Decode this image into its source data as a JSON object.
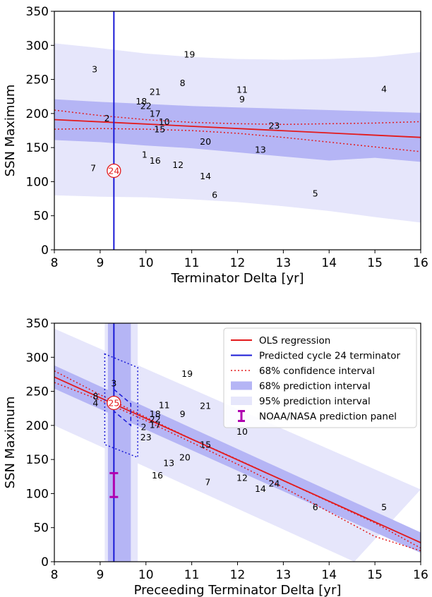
{
  "chart_data": [
    {
      "type": "scatter",
      "xlabel": "Terminator Delta [yr]",
      "ylabel": "SSN Maximum",
      "xlim": [
        8,
        16
      ],
      "ylim": [
        0,
        350
      ],
      "xticks": [
        "8",
        "9",
        "10",
        "11",
        "12",
        "13",
        "14",
        "15",
        "16"
      ],
      "yticks": [
        "0",
        "50",
        "100",
        "150",
        "200",
        "250",
        "300",
        "350"
      ],
      "points": [
        {
          "label": "1",
          "x": 9.97,
          "y": 140
        },
        {
          "label": "2",
          "x": 9.15,
          "y": 193
        },
        {
          "label": "3",
          "x": 8.88,
          "y": 265
        },
        {
          "label": "4",
          "x": 15.2,
          "y": 236
        },
        {
          "label": "5",
          "x": 13.7,
          "y": 83
        },
        {
          "label": "6",
          "x": 11.5,
          "y": 81
        },
        {
          "label": "7",
          "x": 8.85,
          "y": 120
        },
        {
          "label": "8",
          "x": 10.8,
          "y": 245
        },
        {
          "label": "9",
          "x": 12.1,
          "y": 221
        },
        {
          "label": "10",
          "x": 10.4,
          "y": 188
        },
        {
          "label": "11",
          "x": 12.1,
          "y": 235
        },
        {
          "label": "12",
          "x": 10.7,
          "y": 125
        },
        {
          "label": "13",
          "x": 12.5,
          "y": 147
        },
        {
          "label": "14",
          "x": 11.3,
          "y": 108
        },
        {
          "label": "15",
          "x": 10.3,
          "y": 177
        },
        {
          "label": "16",
          "x": 10.2,
          "y": 131
        },
        {
          "label": "17",
          "x": 10.2,
          "y": 200
        },
        {
          "label": "18",
          "x": 9.9,
          "y": 218
        },
        {
          "label": "19",
          "x": 10.95,
          "y": 287
        },
        {
          "label": "20",
          "x": 11.3,
          "y": 159
        },
        {
          "label": "21",
          "x": 10.2,
          "y": 232
        },
        {
          "label": "22",
          "x": 10.0,
          "y": 211
        },
        {
          "label": "23",
          "x": 12.8,
          "y": 182
        }
      ],
      "highlight": {
        "label": "24",
        "x": 9.3,
        "y": 116
      },
      "regression": {
        "x": [
          8,
          16
        ],
        "y": [
          191,
          165
        ]
      },
      "conf68_upper": {
        "x": [
          8,
          9,
          10,
          11,
          12,
          13,
          14,
          15,
          16
        ],
        "y": [
          205,
          197,
          191,
          187,
          185,
          184,
          185,
          186,
          188
        ]
      },
      "conf68_lower": {
        "x": [
          8,
          9,
          10,
          11,
          12,
          13,
          14,
          15,
          16
        ],
        "y": [
          177,
          178,
          177,
          175,
          171,
          165,
          158,
          151,
          144
        ]
      },
      "pred68_upper": {
        "x": [
          8,
          9,
          10,
          11,
          12,
          13,
          14,
          15,
          16
        ],
        "y": [
          221,
          217,
          214,
          211,
          209,
          207,
          205,
          203,
          201
        ]
      },
      "pred68_lower": {
        "x": [
          8,
          9,
          10,
          11,
          12,
          13,
          14,
          15,
          16
        ],
        "y": [
          161,
          158,
          153,
          149,
          143,
          137,
          131,
          135,
          129
        ]
      },
      "pred95_upper": {
        "x": [
          8,
          9,
          10,
          11,
          12,
          13,
          14,
          15,
          16
        ],
        "y": [
          303,
          296,
          288,
          283,
          280,
          279,
          280,
          283,
          290
        ]
      },
      "pred95_lower": {
        "x": [
          8,
          9,
          10,
          11,
          12,
          13,
          14,
          15,
          16
        ],
        "y": [
          80,
          78,
          77,
          74,
          70,
          64,
          57,
          48,
          40
        ]
      },
      "vline": 9.3
    },
    {
      "type": "scatter",
      "xlabel": "Preceeding Terminator Delta [yr]",
      "ylabel": "SSN Maximum",
      "xlim": [
        8,
        16
      ],
      "ylim": [
        0,
        350
      ],
      "xticks": [
        "8",
        "9",
        "10",
        "11",
        "12",
        "13",
        "14",
        "15",
        "16"
      ],
      "yticks": [
        "0",
        "50",
        "100",
        "150",
        "200",
        "250",
        "300",
        "350"
      ],
      "points": [
        {
          "label": "2",
          "x": 9.95,
          "y": 198
        },
        {
          "label": "3",
          "x": 9.3,
          "y": 262
        },
        {
          "label": "4",
          "x": 8.9,
          "y": 233
        },
        {
          "label": "5",
          "x": 15.2,
          "y": 80
        },
        {
          "label": "6",
          "x": 13.7,
          "y": 80
        },
        {
          "label": "7",
          "x": 11.35,
          "y": 117
        },
        {
          "label": "8",
          "x": 8.9,
          "y": 243
        },
        {
          "label": "9",
          "x": 10.8,
          "y": 217
        },
        {
          "label": "10",
          "x": 12.1,
          "y": 191
        },
        {
          "label": "11",
          "x": 10.4,
          "y": 230
        },
        {
          "label": "12",
          "x": 12.1,
          "y": 123
        },
        {
          "label": "13",
          "x": 10.5,
          "y": 145
        },
        {
          "label": "14",
          "x": 12.5,
          "y": 107
        },
        {
          "label": "15",
          "x": 11.3,
          "y": 172
        },
        {
          "label": "16",
          "x": 10.25,
          "y": 127
        },
        {
          "label": "17",
          "x": 10.2,
          "y": 201
        },
        {
          "label": "18",
          "x": 10.2,
          "y": 217
        },
        {
          "label": "19",
          "x": 10.9,
          "y": 276
        },
        {
          "label": "20",
          "x": 10.85,
          "y": 153
        },
        {
          "label": "21",
          "x": 11.3,
          "y": 229
        },
        {
          "label": "22",
          "x": 10.2,
          "y": 209
        },
        {
          "label": "23",
          "x": 10.0,
          "y": 183
        },
        {
          "label": "24",
          "x": 12.8,
          "y": 115
        }
      ],
      "highlight": {
        "label": "25",
        "x": 9.3,
        "y": 233
      },
      "regression": {
        "x": [
          8,
          16
        ],
        "y": [
          271,
          28
        ]
      },
      "conf68_upper": {
        "x": [
          8,
          9,
          10,
          11,
          12,
          13,
          14,
          15,
          16
        ],
        "y": [
          280,
          245,
          212,
          180,
          150,
          119,
          88,
          57,
          20
        ]
      },
      "conf68_lower": {
        "x": [
          8,
          9,
          10,
          11,
          12,
          13,
          14,
          15,
          16
        ],
        "y": [
          263,
          237,
          207,
          175,
          143,
          109,
          73,
          37,
          16
        ]
      },
      "pred68_upper": {
        "x": [
          8,
          16
        ],
        "y": [
          288,
          43
        ]
      },
      "pred68_lower": {
        "x": [
          8,
          16
        ],
        "y": [
          254,
          13
        ]
      },
      "pred95_upper": {
        "x": [
          8,
          16
        ],
        "y": [
          342,
          106
        ]
      },
      "pred95_lower": {
        "x": [
          8,
          14.55
        ],
        "y": [
          200,
          0
        ]
      },
      "vline": 9.3,
      "vband68": [
        9.17,
        9.67
      ],
      "vband95": [
        9.1,
        9.82
      ],
      "dashed_box": [
        [
          9.3,
          253
        ],
        [
          9.67,
          232
        ],
        [
          9.67,
          200
        ],
        [
          9.3,
          221
        ]
      ],
      "dotted_box": [
        [
          9.1,
          305
        ],
        [
          9.82,
          285
        ],
        [
          9.82,
          153
        ],
        [
          9.1,
          172
        ]
      ],
      "noaa_errorbar": {
        "x": 9.3,
        "low": 95,
        "high": 130
      },
      "legend": [
        {
          "label": "OLS regression",
          "kind": "line",
          "color": "#e31a1c"
        },
        {
          "label": "Predicted cycle 24 terminator",
          "kind": "line",
          "color": "#1a1ad6"
        },
        {
          "label": "68% confidence interval",
          "kind": "dotted",
          "color": "#e31a1c"
        },
        {
          "label": "68% prediction interval",
          "kind": "patch",
          "color": "#b5b5f5"
        },
        {
          "label": "95% prediction interval",
          "kind": "patch",
          "color": "#e6e6fb"
        },
        {
          "label": "NOAA/NASA prediction panel",
          "kind": "errorbar",
          "color": "#b000b0"
        }
      ]
    }
  ]
}
